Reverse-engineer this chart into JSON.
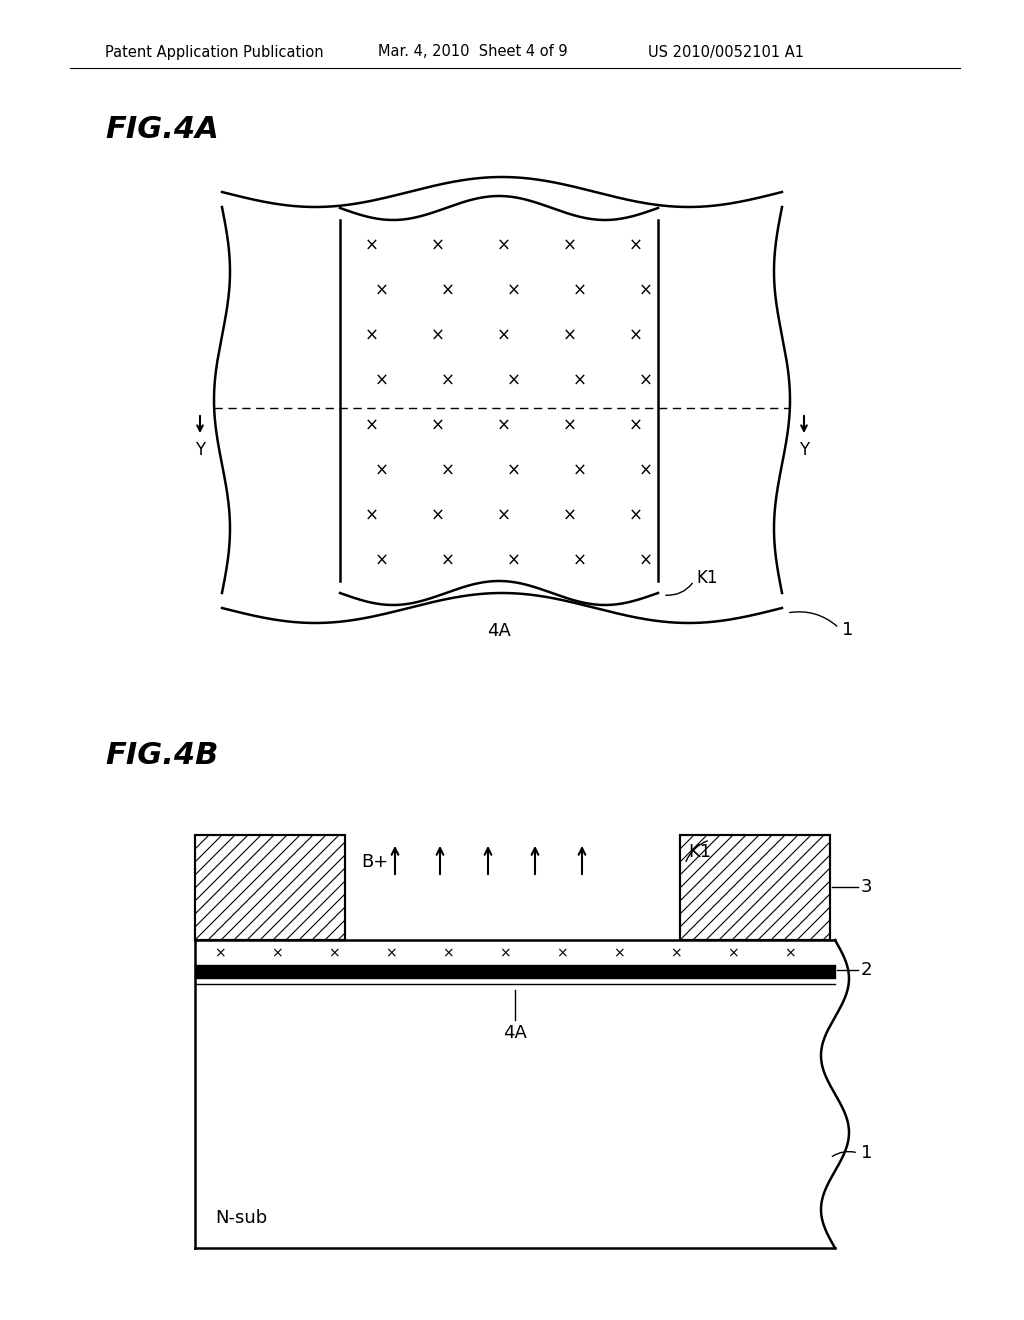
{
  "bg_color": "#ffffff",
  "header_text1": "Patent Application Publication",
  "header_text2": "Mar. 4, 2010  Sheet 4 of 9",
  "header_text3": "US 2010/0052101 A1",
  "fig4a_title": "FIG.4A",
  "fig4b_title": "FIG.4B",
  "label_1": "1",
  "label_2": "2",
  "label_3": "3",
  "label_4A": "4A",
  "label_K1": "K1",
  "label_Y": "Y",
  "label_Bplus": "B+",
  "label_Nsub": "N-sub"
}
